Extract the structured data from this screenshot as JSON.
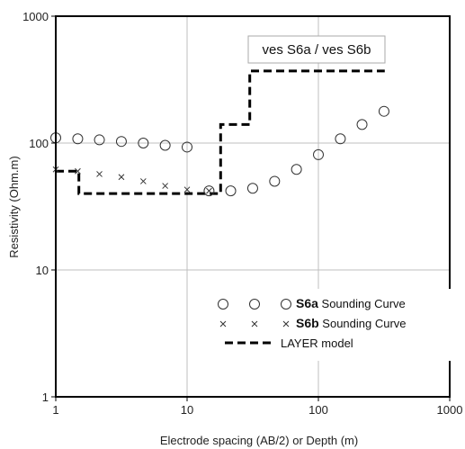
{
  "chart_data": {
    "type": "scatter",
    "xscale": "log",
    "yscale": "log",
    "xlim": [
      1,
      1000
    ],
    "ylim": [
      1,
      1000
    ],
    "grid": true,
    "xlabel": "Electrode spacing (AB/2) or Depth (m)",
    "ylabel": "Resistivity (Ohm.m)",
    "xticks": [
      "1",
      "10",
      "100",
      "1000"
    ],
    "yticks": [
      "1",
      "10",
      "100",
      "1000"
    ],
    "annotation": "ves S6a / ves S6b",
    "legend_position": "bottom-right",
    "series": [
      {
        "name_bold": "S6a",
        "name_rest": " Sounding Curve",
        "marker": "circle",
        "x": [
          1,
          1.47,
          2.15,
          3.16,
          4.64,
          6.81,
          10,
          14.7,
          21.5,
          31.6,
          46.4,
          68.1,
          100,
          147,
          215,
          316
        ],
        "y": [
          110,
          108,
          106,
          103,
          100,
          96,
          93,
          42,
          42,
          44,
          50,
          62,
          81,
          108,
          140,
          178
        ]
      },
      {
        "name_bold": "S6b",
        "name_rest": " Sounding Curve",
        "marker": "x",
        "x": [
          1,
          1.47,
          2.15,
          3.16,
          4.64,
          6.81,
          10,
          14.7
        ],
        "y": [
          62,
          60,
          57,
          54,
          50,
          46,
          43,
          42
        ]
      },
      {
        "name": "LAYER model",
        "style": "dashed-step",
        "x": [
          1,
          1.5,
          1.5,
          18,
          18,
          30,
          30,
          320
        ],
        "y": [
          60,
          60,
          40,
          40,
          140,
          140,
          370,
          370
        ]
      }
    ]
  }
}
